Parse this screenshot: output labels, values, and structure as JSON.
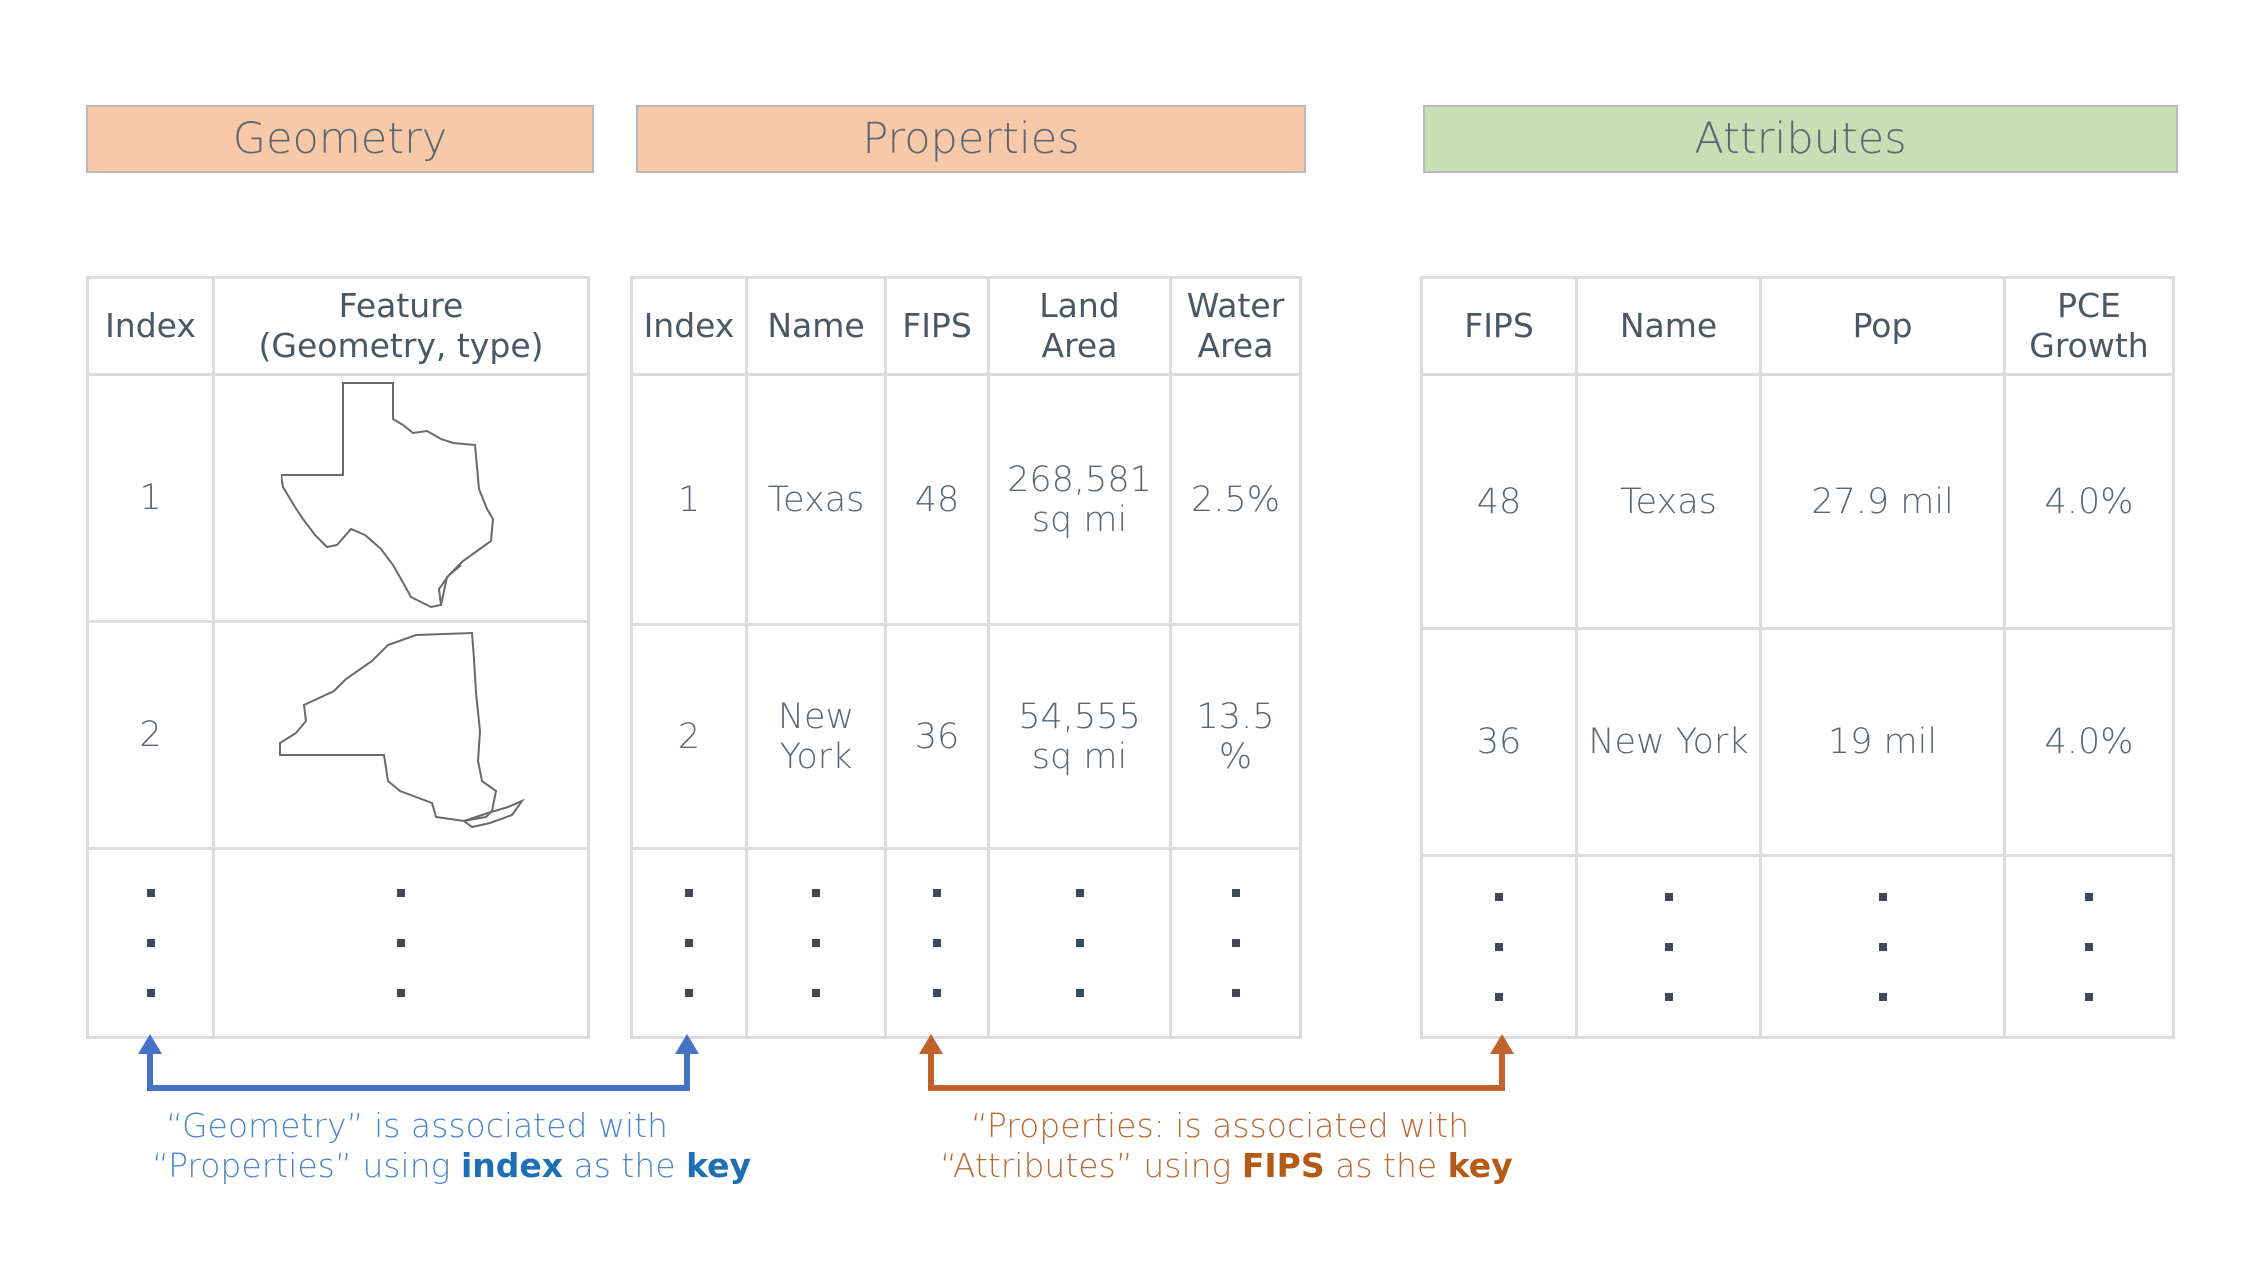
{
  "headers": {
    "geometry": "Geometry",
    "properties": "Properties",
    "attributes": "Attributes"
  },
  "geometry_table": {
    "columns": [
      "Index",
      "Feature\n(Geometry, type)"
    ],
    "rows": [
      {
        "index": "1",
        "shape": "texas-outline"
      },
      {
        "index": "2",
        "shape": "new-york-outline"
      }
    ]
  },
  "properties_table": {
    "columns": [
      "Index",
      "Name",
      "FIPS",
      "Land\nArea",
      "Water\nArea"
    ],
    "rows": [
      [
        "1",
        "Texas",
        "48",
        "268,581\nsq mi",
        "2.5%"
      ],
      [
        "2",
        "New\nYork",
        "36",
        "54,555\nsq mi",
        "13.5\n%"
      ]
    ]
  },
  "attributes_table": {
    "columns": [
      "FIPS",
      "Name",
      "Pop",
      "PCE\nGrowth"
    ],
    "rows": [
      [
        "48",
        "Texas",
        "27.9 mil",
        "4.0%"
      ],
      [
        "36",
        "New York",
        "19 mil",
        "4.0%"
      ]
    ]
  },
  "captions": {
    "left_line1": "“Geometry” is associated with",
    "left_line2_pre": "“Properties” using ",
    "left_line2_key1": "index",
    "left_line2_mid": " as the ",
    "left_line2_key2": "key",
    "right_line1": "“Properties: is associated with",
    "right_line2_pre": "“Attributes” using ",
    "right_line2_key1": "FIPS",
    "right_line2_mid": " as the ",
    "right_line2_key2": "key"
  },
  "colors": {
    "header_orange": "#f7c9a8",
    "header_green": "#c6e0b5",
    "arrow_blue": "#4472c4",
    "arrow_brown": "#c0622a"
  }
}
